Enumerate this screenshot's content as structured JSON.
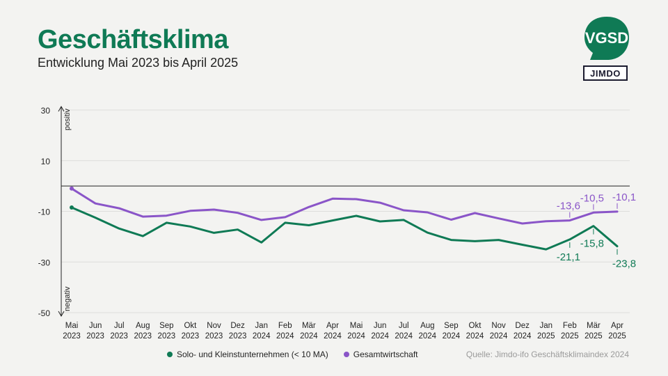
{
  "header": {
    "title": "Geschäftsklima",
    "subtitle": "Entwicklung Mai 2023 bis April 2025"
  },
  "logos": {
    "vgsd_text": "VGSD",
    "jimdo_text": "JIMDO"
  },
  "source": "Quelle: Jimdo-ifo Geschäftsklimaindex 2024",
  "colors": {
    "solo": "#0f7a55",
    "gesamt": "#8a55c8"
  },
  "chart_data": {
    "type": "line",
    "ylim": [
      -50,
      30
    ],
    "yticks": [
      30,
      10,
      -10,
      -30,
      -50
    ],
    "zero_line": 0,
    "axis_annotations": {
      "top": "positiv",
      "bottom": "negativ"
    },
    "grid": true,
    "legend": "bottom",
    "categories": [
      [
        "Mai",
        "2023"
      ],
      [
        "Jun",
        "2023"
      ],
      [
        "Jul",
        "2023"
      ],
      [
        "Aug",
        "2023"
      ],
      [
        "Sep",
        "2023"
      ],
      [
        "Okt",
        "2023"
      ],
      [
        "Nov",
        "2023"
      ],
      [
        "Dez",
        "2023"
      ],
      [
        "Jan",
        "2024"
      ],
      [
        "Feb",
        "2024"
      ],
      [
        "Mär",
        "2024"
      ],
      [
        "Apr",
        "2024"
      ],
      [
        "Mai",
        "2024"
      ],
      [
        "Jun",
        "2024"
      ],
      [
        "Jul",
        "2024"
      ],
      [
        "Aug",
        "2024"
      ],
      [
        "Sep",
        "2024"
      ],
      [
        "Okt",
        "2024"
      ],
      [
        "Nov",
        "2024"
      ],
      [
        "Dez",
        "2024"
      ],
      [
        "Jan",
        "2025"
      ],
      [
        "Feb",
        "2025"
      ],
      [
        "Mär",
        "2025"
      ],
      [
        "Apr",
        "2025"
      ]
    ],
    "series": [
      {
        "key": "solo",
        "name": "Solo- und Kleinstunternehmen (< 10 MA)",
        "values": [
          -8.5,
          -12.5,
          -16.8,
          -19.8,
          -14.5,
          -16.0,
          -18.5,
          -17.2,
          -22.3,
          -14.5,
          -15.5,
          -13.6,
          -11.8,
          -14.0,
          -13.4,
          -18.4,
          -21.3,
          -21.8,
          -21.3,
          -23.2,
          -25.0,
          -21.1,
          -15.8,
          -23.8
        ],
        "labels": [
          {
            "index": 21,
            "text": "-21,1",
            "pos": "below"
          },
          {
            "index": 22,
            "text": "-15,8",
            "pos": "below"
          },
          {
            "index": 23,
            "text": "-23,8",
            "pos": "below"
          }
        ]
      },
      {
        "key": "gesamt",
        "name": "Gesamtwirtschaft",
        "values": [
          -1.0,
          -6.9,
          -8.8,
          -12.1,
          -11.7,
          -9.8,
          -9.3,
          -10.6,
          -13.4,
          -12.3,
          -8.3,
          -5.0,
          -5.2,
          -6.6,
          -9.6,
          -10.4,
          -13.3,
          -10.7,
          -12.8,
          -14.8,
          -13.9,
          -13.6,
          -10.5,
          -10.1
        ],
        "labels": [
          {
            "index": 21,
            "text": "-13,6",
            "pos": "above"
          },
          {
            "index": 22,
            "text": "-10,5",
            "pos": "above"
          },
          {
            "index": 23,
            "text": "-10,1",
            "pos": "above"
          }
        ]
      }
    ]
  }
}
